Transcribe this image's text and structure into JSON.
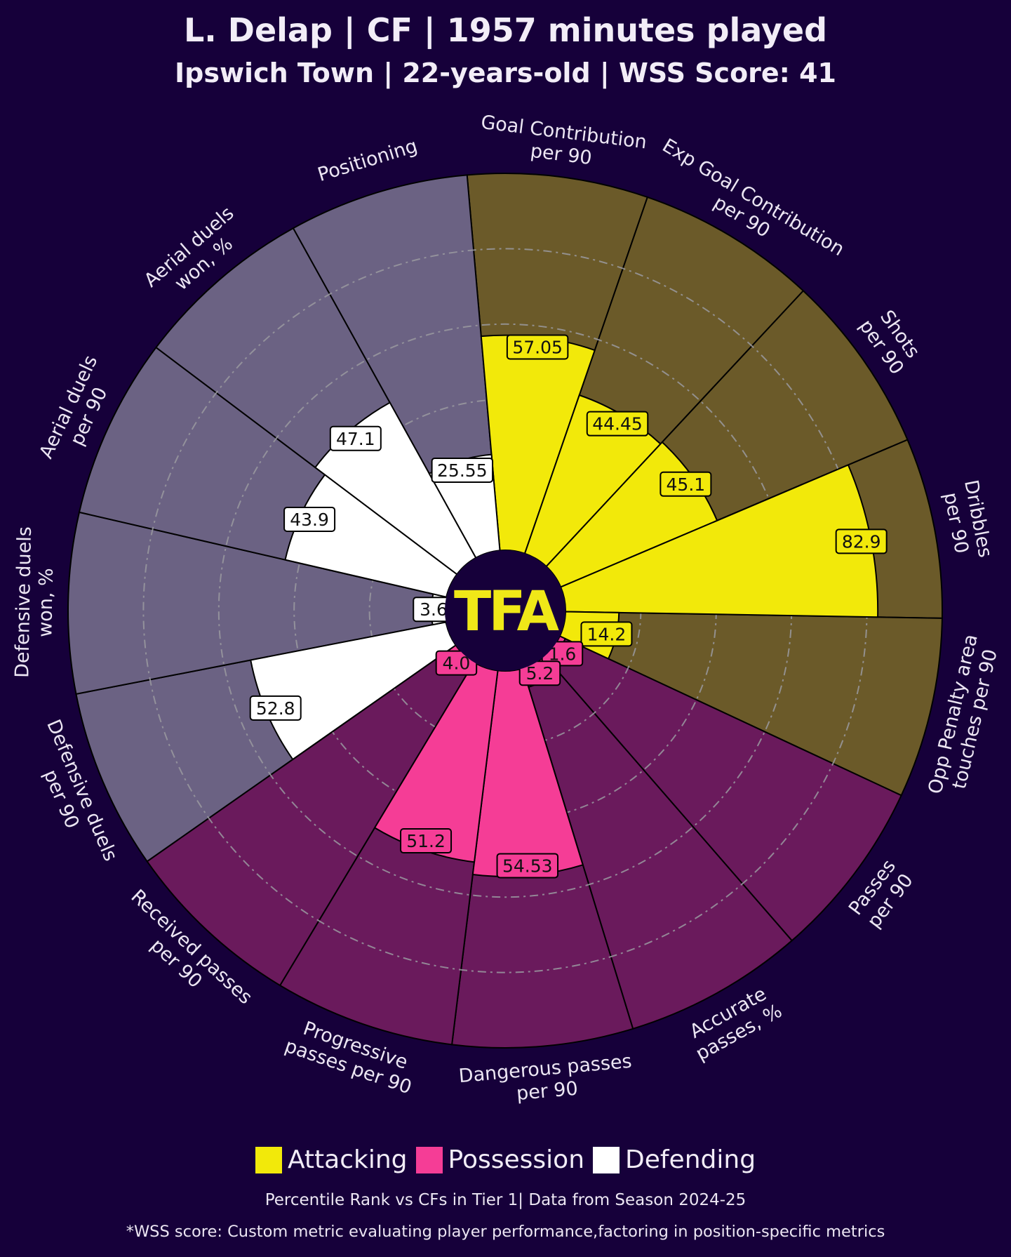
{
  "title": "L. Delap | CF | 1957 minutes played",
  "subtitle": "Ipswich Town | 22-years-old | WSS Score: 41",
  "logo_text": "TFA",
  "legend": [
    {
      "label": "Attacking",
      "color": "#f2e90a"
    },
    {
      "label": "Possession",
      "color": "#f53d96"
    },
    {
      "label": "Defending",
      "color": "#ffffff"
    }
  ],
  "footnote_1": "Percentile Rank vs CFs in Tier 1| Data from Season 2024-25",
  "footnote_2": "*WSS score: Custom metric evaluating player performance,factoring in position-specific metrics",
  "chart_data": {
    "type": "polar-bar",
    "rlim": [
      0,
      100
    ],
    "gridlines": [
      20,
      40,
      60,
      80
    ],
    "colors": {
      "attacking_bg": "#6b5a29",
      "attacking_fg": "#f2e90a",
      "possession_bg": "#6a1a5c",
      "possession_fg": "#f53d96",
      "defending_bg": "#6b6283",
      "defending_fg": "#ffffff"
    },
    "segments": [
      {
        "label": "Goal Contribution\nper 90",
        "value": 57.05,
        "value_label": "57.05",
        "group": "attacking"
      },
      {
        "label": "Exp Goal Contribution\nper 90",
        "value": 44.45,
        "value_label": "44.45",
        "group": "attacking"
      },
      {
        "label": "Shots\nper 90",
        "value": 45.1,
        "value_label": "45.1",
        "group": "attacking"
      },
      {
        "label": "Dribbles\nper 90",
        "value": 82.9,
        "value_label": "82.9",
        "group": "attacking"
      },
      {
        "label": "Opp Penalty area\ntouches per 90",
        "value": 14.2,
        "value_label": "14.2",
        "group": "attacking"
      },
      {
        "label": "Passes\nper 90",
        "value": 1.6,
        "value_label": "1.6",
        "group": "possession"
      },
      {
        "label": "Accurate\npasses, %",
        "value": 5.2,
        "value_label": "5.2",
        "group": "possession"
      },
      {
        "label": "Dangerous passes\nper 90",
        "value": 54.53,
        "value_label": "54.53",
        "group": "possession"
      },
      {
        "label": "Progressive\npasses per 90",
        "value": 51.2,
        "value_label": "51.2",
        "group": "possession"
      },
      {
        "label": "Received passes\nper 90",
        "value": 4.0,
        "value_label": "4.0",
        "group": "possession"
      },
      {
        "label": "Defensive duels\nper 90",
        "value": 52.8,
        "value_label": "52.8",
        "group": "defending"
      },
      {
        "label": "Defensive duels\nwon, %",
        "value": 3.6,
        "value_label": "3.6",
        "group": "defending"
      },
      {
        "label": "Aerial duels\nper 90",
        "value": 43.9,
        "value_label": "43.9",
        "group": "defending"
      },
      {
        "label": "Aerial duels\nwon, %",
        "value": 47.1,
        "value_label": "47.1",
        "group": "defending"
      },
      {
        "label": "Positioning",
        "value": 25.55,
        "value_label": "25.55",
        "group": "defending"
      }
    ]
  }
}
